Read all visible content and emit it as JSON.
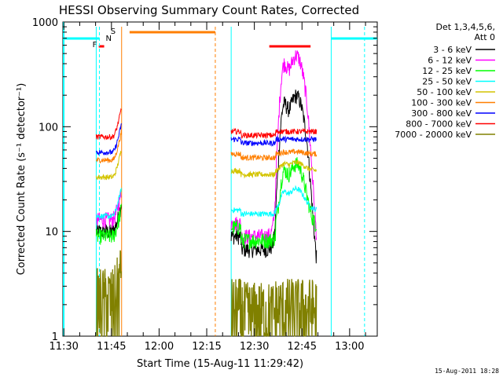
{
  "chart_data": {
    "type": "line",
    "title": "HESSI Observing Summary Count Rates, Corrected",
    "xlabel": "Start Time (15-Aug-11 11:29:42)",
    "ylabel": "Corrected Count Rate (s⁻¹ detector⁻¹)",
    "yscale": "log",
    "ylim": [
      1,
      1000
    ],
    "xlim_minutes": [
      0,
      99
    ],
    "x_ticks": [
      "11:30",
      "11:45",
      "12:00",
      "12:15",
      "12:30",
      "12:45",
      "13:00"
    ],
    "y_ticks": [
      "1",
      "10",
      "100",
      "1000"
    ],
    "footer_date": "15-Aug-2011 18:28",
    "legend": {
      "header1": "Det 1,3,4,5,6,",
      "header2": "Att 0",
      "placement": "right"
    },
    "flags": [
      {
        "label": "F",
        "color": "#ff0000"
      },
      {
        "label": "N",
        "color": "#00d8ff"
      },
      {
        "label": "S",
        "color": "#ff7f00"
      }
    ],
    "series": [
      {
        "name": "3 - 6 keV",
        "color": "#000000"
      },
      {
        "name": "6 - 12 keV",
        "color": "#ff00ff"
      },
      {
        "name": "12 - 25 keV",
        "color": "#00ff00"
      },
      {
        "name": "25 - 50 keV",
        "color": "#00ffff"
      },
      {
        "name": "50 - 100 keV",
        "color": "#d4c400"
      },
      {
        "name": "100 - 300 keV",
        "color": "#ff7f00"
      },
      {
        "name": "300 - 800 keV",
        "color": "#0000ff"
      },
      {
        "name": "800 - 7000 keV",
        "color": "#ff0000"
      },
      {
        "name": "7000 - 20000 keV",
        "color": "#808000"
      }
    ],
    "segments": [
      {
        "start": 10.5,
        "end": 18.5
      },
      {
        "start": 53.0,
        "end": 80.0
      }
    ],
    "levels": {
      "seg1": [
        10,
        13,
        9,
        14,
        33,
        48,
        57,
        80,
        2.5
      ],
      "seg2": [
        9,
        12,
        11,
        16,
        38,
        55,
        76,
        90,
        2.0
      ]
    },
    "flare_peak": {
      "x": 73.5,
      "value": 350
    },
    "bars": [
      {
        "name": "night",
        "color": "#00ffff",
        "ranges": [
          [
            0,
            11.5
          ],
          [
            84.5,
            99
          ]
        ]
      },
      {
        "name": "saa",
        "color": "#ff7f00",
        "ranges": [
          [
            21,
            48
          ]
        ]
      },
      {
        "name": "flare",
        "color": "#ff0000",
        "ranges": [
          [
            11.3,
            13.0
          ],
          [
            65,
            78
          ]
        ]
      }
    ]
  }
}
